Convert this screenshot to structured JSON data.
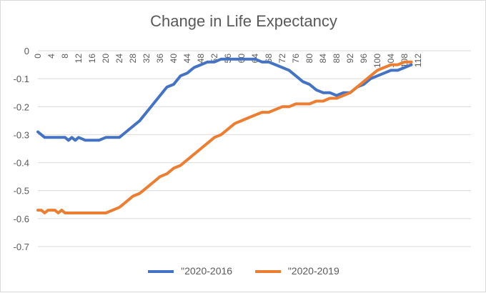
{
  "chart_data": {
    "type": "line",
    "title": "Change in Life Expectancy",
    "xlabel": "",
    "ylabel": "",
    "ylim": [
      -0.7,
      0
    ],
    "y_ticks": [
      0,
      -0.1,
      -0.2,
      -0.3,
      -0.4,
      -0.5,
      -0.6,
      -0.7
    ],
    "x_tick_labels": [
      "0",
      "4",
      "8",
      "12",
      "16",
      "20",
      "24",
      "28",
      "32",
      "36",
      "40",
      "44",
      "48",
      "52",
      "56",
      "60",
      "64",
      "68",
      "72",
      "76",
      "80",
      "84",
      "88",
      "92",
      "96",
      "100",
      "104",
      "108",
      "112"
    ],
    "grid": true,
    "legend_position": "bottom",
    "series": [
      {
        "name": "\"2020-2016",
        "color": "#4472c4",
        "x": [
          0,
          2,
          4,
          6,
          8,
          9,
          10,
          11,
          12,
          14,
          16,
          18,
          20,
          22,
          24,
          26,
          28,
          30,
          32,
          34,
          36,
          38,
          40,
          42,
          44,
          46,
          48,
          50,
          52,
          54,
          56,
          58,
          60,
          62,
          64,
          66,
          68,
          70,
          72,
          74,
          76,
          78,
          80,
          82,
          84,
          86,
          88,
          90,
          92,
          94,
          96,
          98,
          100,
          102,
          104,
          106,
          108,
          110
        ],
        "values": [
          -0.29,
          -0.31,
          -0.31,
          -0.31,
          -0.31,
          -0.32,
          -0.31,
          -0.32,
          -0.31,
          -0.32,
          -0.32,
          -0.32,
          -0.31,
          -0.31,
          -0.31,
          -0.29,
          -0.27,
          -0.25,
          -0.22,
          -0.19,
          -0.16,
          -0.13,
          -0.12,
          -0.09,
          -0.08,
          -0.06,
          -0.05,
          -0.04,
          -0.04,
          -0.03,
          -0.03,
          -0.03,
          -0.03,
          -0.03,
          -0.03,
          -0.04,
          -0.04,
          -0.05,
          -0.06,
          -0.07,
          -0.09,
          -0.11,
          -0.12,
          -0.14,
          -0.15,
          -0.15,
          -0.16,
          -0.15,
          -0.15,
          -0.13,
          -0.12,
          -0.1,
          -0.09,
          -0.08,
          -0.07,
          -0.07,
          -0.06,
          -0.05
        ]
      },
      {
        "name": "\"2020-2019",
        "color": "#ed7d31",
        "x": [
          0,
          1,
          2,
          3,
          4,
          5,
          6,
          7,
          8,
          10,
          12,
          14,
          16,
          18,
          20,
          22,
          24,
          26,
          28,
          30,
          32,
          34,
          36,
          38,
          40,
          42,
          44,
          46,
          48,
          50,
          52,
          54,
          56,
          58,
          60,
          62,
          64,
          66,
          68,
          70,
          72,
          74,
          76,
          78,
          80,
          82,
          84,
          86,
          88,
          90,
          92,
          94,
          96,
          98,
          100,
          102,
          104,
          106,
          108,
          110
        ],
        "values": [
          -0.57,
          -0.57,
          -0.58,
          -0.57,
          -0.57,
          -0.57,
          -0.58,
          -0.57,
          -0.58,
          -0.58,
          -0.58,
          -0.58,
          -0.58,
          -0.58,
          -0.58,
          -0.57,
          -0.56,
          -0.54,
          -0.52,
          -0.51,
          -0.49,
          -0.47,
          -0.45,
          -0.44,
          -0.42,
          -0.41,
          -0.39,
          -0.37,
          -0.35,
          -0.33,
          -0.31,
          -0.3,
          -0.28,
          -0.26,
          -0.25,
          -0.24,
          -0.23,
          -0.22,
          -0.22,
          -0.21,
          -0.2,
          -0.2,
          -0.19,
          -0.19,
          -0.19,
          -0.18,
          -0.18,
          -0.17,
          -0.17,
          -0.16,
          -0.15,
          -0.13,
          -0.11,
          -0.09,
          -0.07,
          -0.06,
          -0.05,
          -0.05,
          -0.04,
          -0.04
        ]
      }
    ]
  }
}
